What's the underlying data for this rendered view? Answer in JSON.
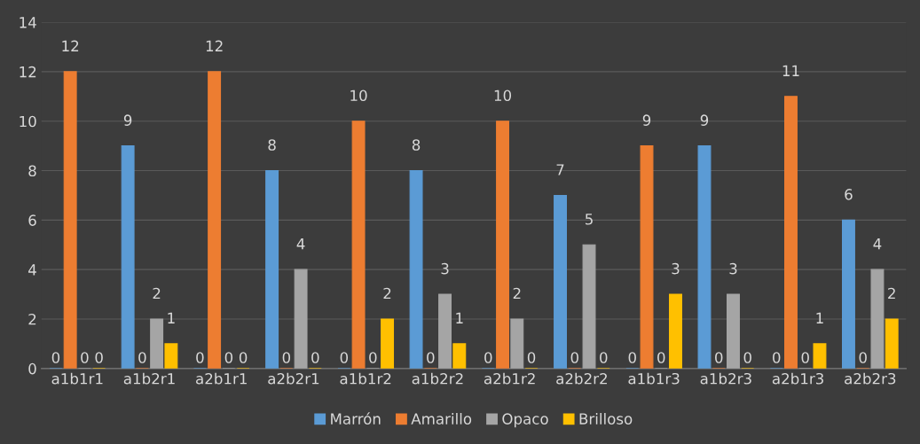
{
  "chart_data": {
    "type": "bar",
    "categories": [
      "a1b1r1",
      "a1b2r1",
      "a2b1r1",
      "a2b2r1",
      "a1b1r2",
      "a1b2r2",
      "a2b1r2",
      "a2b2r2",
      "a1b1r3",
      "a1b2r3",
      "a2b1r3",
      "a2b2r3"
    ],
    "series": [
      {
        "name": "Marrón",
        "color": "#5b9bd5",
        "values": [
          0,
          9,
          0,
          8,
          0,
          8,
          0,
          7,
          0,
          9,
          0,
          6
        ]
      },
      {
        "name": "Amarillo",
        "color": "#ed7d31",
        "values": [
          12,
          0,
          12,
          0,
          10,
          0,
          10,
          0,
          9,
          0,
          11,
          0
        ]
      },
      {
        "name": "Opaco",
        "color": "#a5a5a5",
        "values": [
          0,
          2,
          0,
          4,
          0,
          3,
          2,
          5,
          0,
          3,
          0,
          4
        ]
      },
      {
        "name": "Brilloso",
        "color": "#ffc000",
        "values": [
          0,
          1,
          0,
          0,
          2,
          1,
          0,
          0,
          3,
          0,
          1,
          2
        ]
      }
    ],
    "ylim": [
      0,
      14
    ],
    "yticks": [
      0,
      2,
      4,
      6,
      8,
      10,
      12,
      14
    ],
    "grid": "y",
    "legend": "bottom",
    "data_labels": true
  }
}
